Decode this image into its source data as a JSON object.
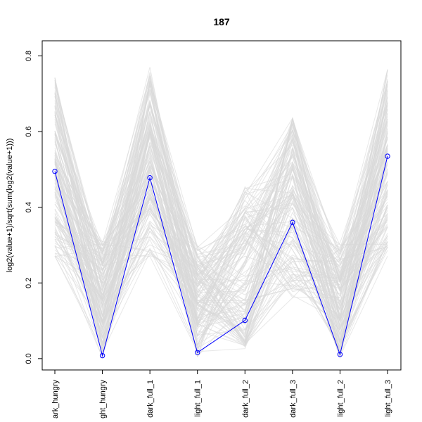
{
  "chart_data": {
    "type": "line",
    "title": "187",
    "xlabel": "",
    "ylabel": "log2(value+1)/sqrt(sum(log2(value+1)))",
    "categories": [
      "dark_hungry",
      "light_hungry",
      "dark_full_1",
      "light_full_1",
      "dark_full_2",
      "dark_full_3",
      "light_full_2",
      "light_full_3"
    ],
    "category_labels_visible": [
      "ark_hungry",
      "ght_hungry",
      "dark_full_1",
      "light_full_1",
      "dark_full_2",
      "dark_full_3",
      "light_full_2",
      "light_full_3"
    ],
    "ylim": [
      -0.03,
      0.84
    ],
    "yticks": [
      0.0,
      0.2,
      0.4,
      0.6,
      0.8
    ],
    "ytick_labels": [
      "0.0",
      "0.2",
      "0.4",
      "0.6",
      "0.8"
    ],
    "grid": false,
    "legend": "none",
    "highlight_series": {
      "values": [
        0.495,
        0.008,
        0.478,
        0.016,
        0.101,
        0.36,
        0.011,
        0.535
      ],
      "color": "#0000ff"
    },
    "background_series": {
      "color": "#d9d9d9",
      "count": 140,
      "ranges": [
        [
          0.24,
          0.77
        ],
        [
          0.0,
          0.31
        ],
        [
          0.24,
          0.8
        ],
        [
          0.0,
          0.3
        ],
        [
          0.0,
          0.48
        ],
        [
          0.13,
          0.67
        ],
        [
          0.0,
          0.31
        ],
        [
          0.24,
          0.8
        ]
      ]
    }
  }
}
